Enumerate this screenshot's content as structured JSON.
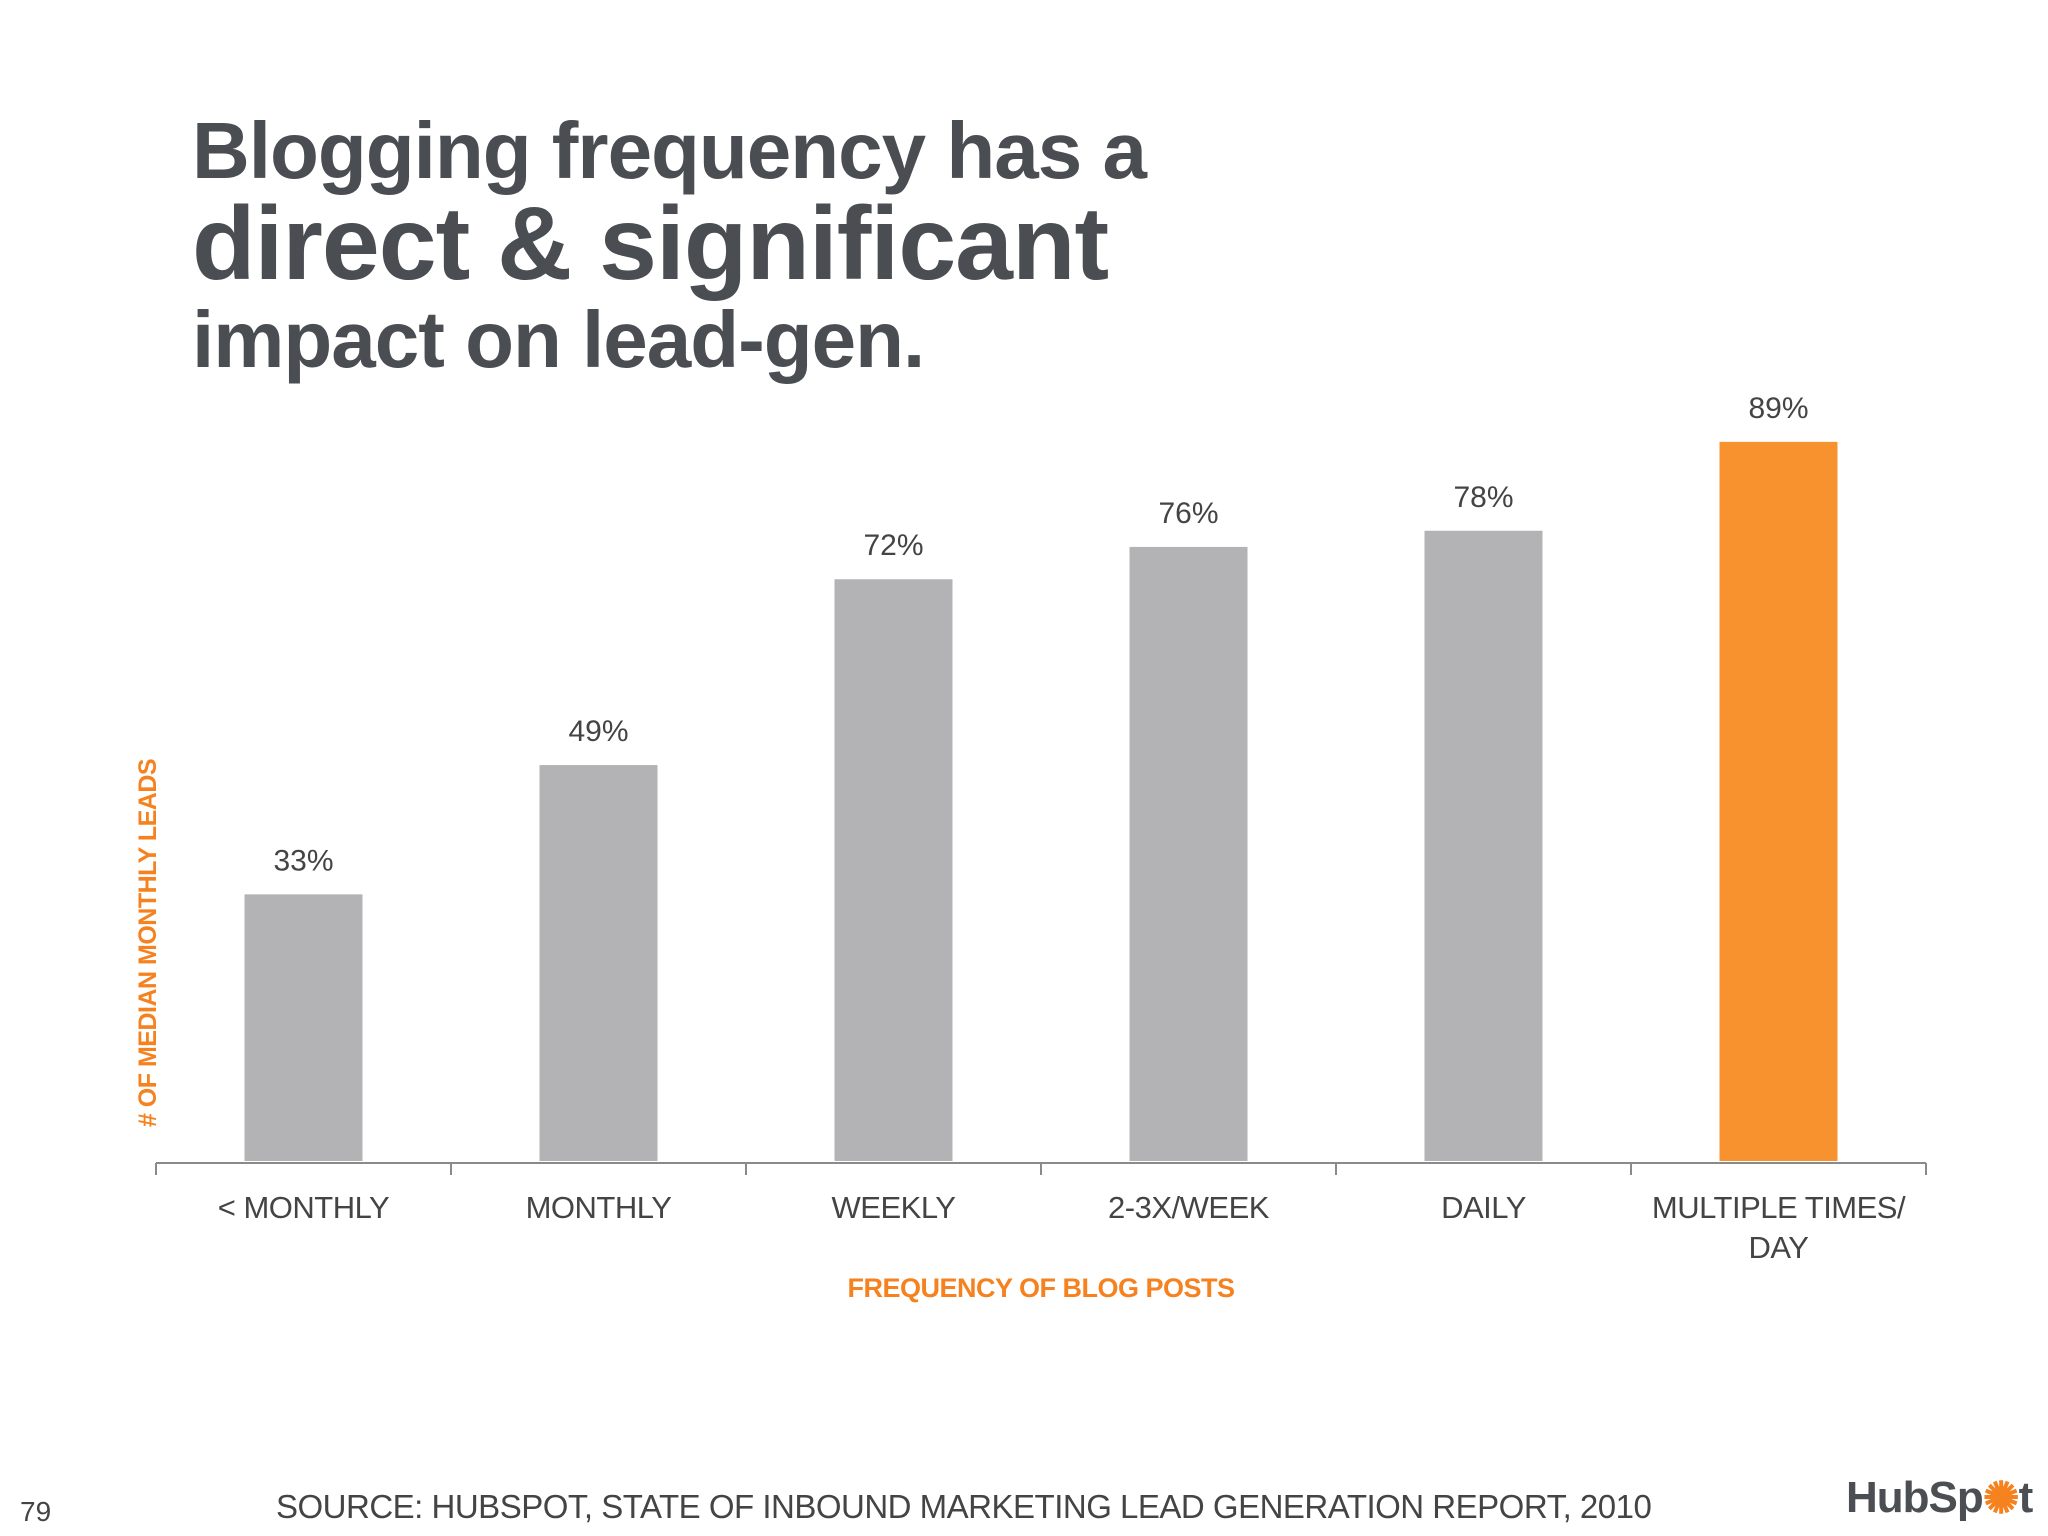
{
  "slide": {
    "title_line1": "Blogging frequency has a",
    "title_line2": "direct & significant",
    "title_line3": "impact on lead-gen.",
    "page_number": "79",
    "source": "SOURCE: HUBSPOT, STATE OF INBOUND MARKETING LEAD GENERATION REPORT, 2010",
    "logo_text_before": "HubSp",
    "logo_text_after": "t"
  },
  "colors": {
    "bar_default": "#b3b3b6",
    "bar_highlight": "#f7922f",
    "axis_label": "#f5821f",
    "text": "#4a4d52"
  },
  "chart_data": {
    "type": "bar",
    "categories": [
      "< MONTHLY",
      "MONTHLY",
      "WEEKLY",
      "2-3X/WEEK",
      "DAILY",
      "MULTIPLE TIMES/\nDAY"
    ],
    "values": [
      33,
      49,
      72,
      76,
      78,
      89
    ],
    "data_labels": [
      "33%",
      "49%",
      "72%",
      "76%",
      "78%",
      "89%"
    ],
    "highlight_index": 5,
    "xlabel": "FREQUENCY OF BLOG POSTS",
    "ylabel": "# OF MEDIAN MONTHLY LEADS",
    "ylim": [
      0,
      100
    ],
    "grid": false,
    "legend": "none"
  }
}
